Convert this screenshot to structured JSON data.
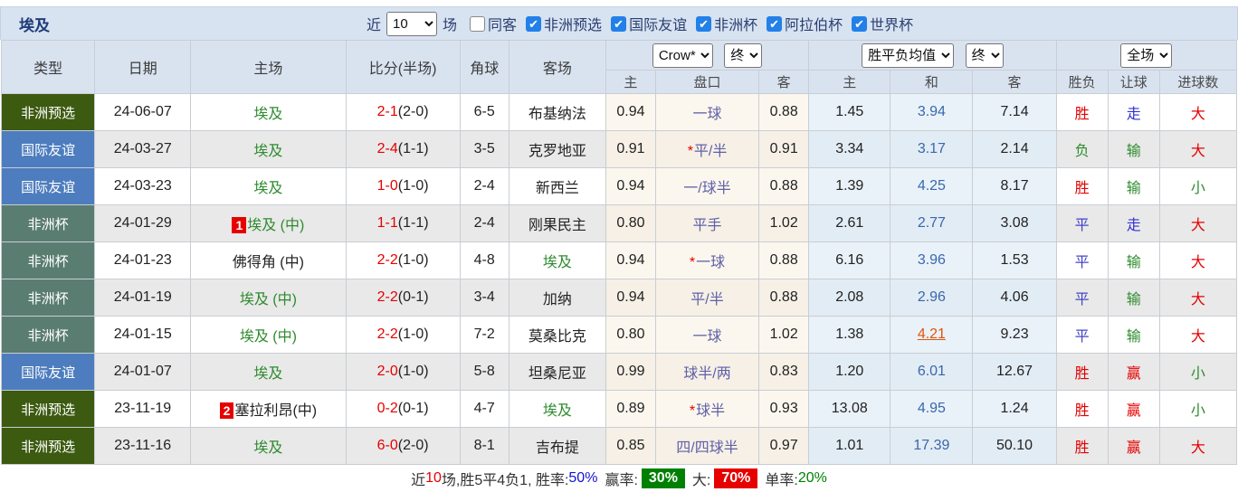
{
  "title": "埃及",
  "filters": {
    "recent": "近",
    "recent_value": "10",
    "games": "场",
    "options": [
      {
        "label": "同客",
        "checked": false
      },
      {
        "label": "非洲预选",
        "checked": true
      },
      {
        "label": "国际友谊",
        "checked": true
      },
      {
        "label": "非洲杯",
        "checked": true
      },
      {
        "label": "阿拉伯杯",
        "checked": true
      },
      {
        "label": "世界杯",
        "checked": true
      }
    ]
  },
  "palette": {
    "非洲预选": "#3c5a10",
    "国际友谊": "#4d7dbe",
    "非洲杯": "#5a7d71",
    "accent_red": "#e60000",
    "accent_green": "#2e8b2e",
    "accent_blue": "#3a67ad"
  },
  "table": {
    "headers": [
      "类型",
      "日期",
      "主场",
      "比分(半场)",
      "角球",
      "客场"
    ],
    "selects": {
      "company": "Crow*",
      "company_time": "终",
      "europe": "胜平负均值",
      "europe_time": "终",
      "scope": "全场"
    },
    "sub_headers": [
      "主",
      "盘口",
      "客",
      "主",
      "和",
      "客",
      "胜负",
      "让球",
      "进球数"
    ],
    "rows": [
      {
        "type": "非洲预选",
        "date": "24-06-07",
        "badge": "",
        "home": "埃及",
        "home_green": true,
        "score": "2-1",
        "half": "(2-0)",
        "corners": "6-5",
        "away": "布基纳法",
        "away_green": false,
        "asian_home": "0.94",
        "handicap": "一球",
        "handicap_star": false,
        "asian_away": "0.88",
        "euro_home": "1.45",
        "euro_draw": "3.94",
        "euro_away": "7.14",
        "euro_draw_highlight": false,
        "result": "胜",
        "result_color": "red",
        "let_result": "走",
        "let_color": "blue",
        "goals": "大",
        "goals_color": "red"
      },
      {
        "type": "国际友谊",
        "date": "24-03-27",
        "badge": "",
        "home": "埃及",
        "home_green": true,
        "score": "2-4",
        "half": "(1-1)",
        "corners": "3-5",
        "away": "克罗地亚",
        "away_green": false,
        "asian_home": "0.91",
        "handicap": "平/半",
        "handicap_star": true,
        "asian_away": "0.91",
        "euro_home": "3.34",
        "euro_draw": "3.17",
        "euro_away": "2.14",
        "euro_draw_highlight": false,
        "result": "负",
        "result_color": "green",
        "let_result": "输",
        "let_color": "green",
        "goals": "大",
        "goals_color": "red"
      },
      {
        "type": "国际友谊",
        "date": "24-03-23",
        "badge": "",
        "home": "埃及",
        "home_green": true,
        "score": "1-0",
        "half": "(1-0)",
        "corners": "2-4",
        "away": "新西兰",
        "away_green": false,
        "asian_home": "0.94",
        "handicap": "一/球半",
        "handicap_star": false,
        "asian_away": "0.88",
        "euro_home": "1.39",
        "euro_draw": "4.25",
        "euro_away": "8.17",
        "euro_draw_highlight": false,
        "result": "胜",
        "result_color": "red",
        "let_result": "输",
        "let_color": "green",
        "goals": "小",
        "goals_color": "green"
      },
      {
        "type": "非洲杯",
        "date": "24-01-29",
        "badge": "1",
        "home": "埃及 (中)",
        "home_green": true,
        "score": "1-1",
        "half": "(1-1)",
        "corners": "2-4",
        "away": "刚果民主",
        "away_green": false,
        "asian_home": "0.80",
        "handicap": "平手",
        "handicap_star": false,
        "asian_away": "1.02",
        "euro_home": "2.61",
        "euro_draw": "2.77",
        "euro_away": "3.08",
        "euro_draw_highlight": false,
        "result": "平",
        "result_color": "indigo",
        "let_result": "走",
        "let_color": "blue",
        "goals": "大",
        "goals_color": "red"
      },
      {
        "type": "非洲杯",
        "date": "24-01-23",
        "badge": "",
        "home": "佛得角 (中)",
        "home_green": false,
        "score": "2-2",
        "half": "(1-0)",
        "corners": "4-8",
        "away": "埃及",
        "away_green": true,
        "asian_home": "0.94",
        "handicap": "一球",
        "handicap_star": true,
        "asian_away": "0.88",
        "euro_home": "6.16",
        "euro_draw": "3.96",
        "euro_away": "1.53",
        "euro_draw_highlight": false,
        "result": "平",
        "result_color": "indigo",
        "let_result": "输",
        "let_color": "green",
        "goals": "大",
        "goals_color": "red"
      },
      {
        "type": "非洲杯",
        "date": "24-01-19",
        "badge": "",
        "home": "埃及 (中)",
        "home_green": true,
        "score": "2-2",
        "half": "(0-1)",
        "corners": "3-4",
        "away": "加纳",
        "away_green": false,
        "asian_home": "0.94",
        "handicap": "平/半",
        "handicap_star": false,
        "asian_away": "0.88",
        "euro_home": "2.08",
        "euro_draw": "2.96",
        "euro_away": "4.06",
        "euro_draw_highlight": false,
        "result": "平",
        "result_color": "indigo",
        "let_result": "输",
        "let_color": "green",
        "goals": "大",
        "goals_color": "red"
      },
      {
        "type": "非洲杯",
        "date": "24-01-15",
        "badge": "",
        "home": "埃及 (中)",
        "home_green": true,
        "score": "2-2",
        "half": "(1-0)",
        "corners": "7-2",
        "away": "莫桑比克",
        "away_green": false,
        "asian_home": "0.80",
        "handicap": "一球",
        "handicap_star": false,
        "asian_away": "1.02",
        "euro_home": "1.38",
        "euro_draw": "4.21",
        "euro_away": "9.23",
        "euro_draw_highlight": true,
        "result": "平",
        "result_color": "indigo",
        "let_result": "输",
        "let_color": "green",
        "goals": "大",
        "goals_color": "red"
      },
      {
        "type": "国际友谊",
        "date": "24-01-07",
        "badge": "",
        "home": "埃及",
        "home_green": true,
        "score": "2-0",
        "half": "(1-0)",
        "corners": "5-8",
        "away": "坦桑尼亚",
        "away_green": false,
        "asian_home": "0.99",
        "handicap": "球半/两",
        "handicap_star": false,
        "asian_away": "0.83",
        "euro_home": "1.20",
        "euro_draw": "6.01",
        "euro_away": "12.67",
        "euro_draw_highlight": false,
        "result": "胜",
        "result_color": "red",
        "let_result": "赢",
        "let_color": "red",
        "goals": "小",
        "goals_color": "green"
      },
      {
        "type": "非洲预选",
        "date": "23-11-19",
        "badge": "2",
        "home": "塞拉利昂(中)",
        "home_green": false,
        "score": "0-2",
        "half": "(0-1)",
        "corners": "4-7",
        "away": "埃及",
        "away_green": true,
        "asian_home": "0.89",
        "handicap": "球半",
        "handicap_star": true,
        "asian_away": "0.93",
        "euro_home": "13.08",
        "euro_draw": "4.95",
        "euro_away": "1.24",
        "euro_draw_highlight": false,
        "result": "胜",
        "result_color": "red",
        "let_result": "赢",
        "let_color": "red",
        "goals": "小",
        "goals_color": "green"
      },
      {
        "type": "非洲预选",
        "date": "23-11-16",
        "badge": "",
        "home": "埃及",
        "home_green": true,
        "score": "6-0",
        "half": "(2-0)",
        "corners": "8-1",
        "away": "吉布提",
        "away_green": false,
        "asian_home": "0.85",
        "handicap": "四/四球半",
        "handicap_star": false,
        "asian_away": "0.97",
        "euro_home": "1.01",
        "euro_draw": "17.39",
        "euro_away": "50.10",
        "euro_draw_highlight": false,
        "result": "胜",
        "result_color": "red",
        "let_result": "赢",
        "let_color": "red",
        "goals": "大",
        "goals_color": "red"
      }
    ]
  },
  "summary": {
    "prefix": "近",
    "count": "10",
    "mid": "场,胜5平4负1, 胜率:",
    "win_rate": "50%",
    "win_label": "赢率:",
    "win_box": "30%",
    "big_label": "大:",
    "big_box": "70%",
    "single_label": "单率:",
    "single_rate": "20%"
  }
}
